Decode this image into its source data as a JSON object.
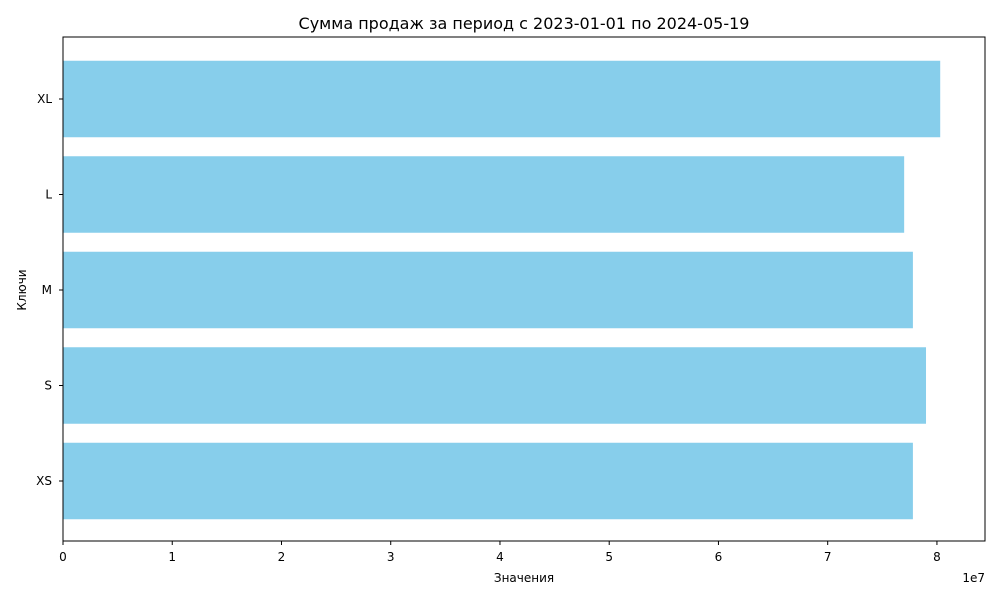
{
  "chart_data": {
    "type": "bar",
    "orientation": "horizontal",
    "title": "Сумма продаж за период с 2023-01-01 по 2024-05-19",
    "xlabel": "Значения",
    "ylabel": "Ключи",
    "categories": [
      "XS",
      "S",
      "M",
      "L",
      "XL"
    ],
    "values": [
      77800000,
      79000000,
      77800000,
      77000000,
      80300000
    ],
    "xlim": [
      0,
      84400000
    ],
    "x_ticks": [
      0,
      10000000,
      20000000,
      30000000,
      40000000,
      50000000,
      60000000,
      70000000,
      80000000
    ],
    "x_tick_labels": [
      "0",
      "1",
      "2",
      "3",
      "4",
      "5",
      "6",
      "7",
      "8"
    ],
    "x_offset_label": "1e7",
    "bar_color": "#87ceeb",
    "grid": false,
    "legend": false
  }
}
